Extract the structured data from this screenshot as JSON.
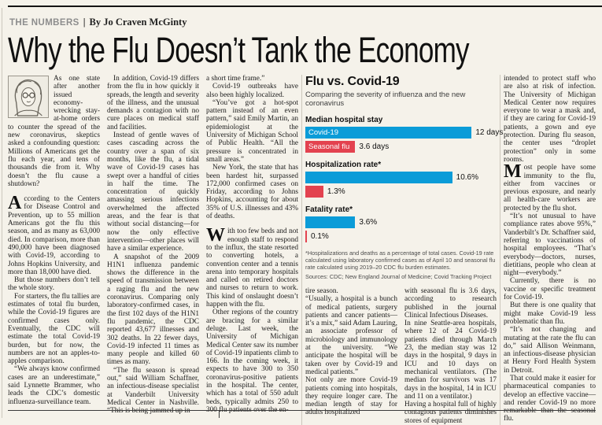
{
  "masthead": {
    "kicker": "THE NUMBERS",
    "separator": "|",
    "byline": "By Jo Craven McGinty"
  },
  "headline": "Why the Flu Doesn’t Tank the Economy",
  "article": {
    "col1": {
      "p1": "As one state after another issued economy-wrecking stay-at-home orders to counter the spread of the new coronavirus, skeptics asked a confounding question: Millions of Americans get the flu each year, and tens of thousands die from it. Why doesn’t the flu cause a shutdown?",
      "p2_dropcap": "A",
      "p2_rest": "ccording to the Centers for Disease Control and Prevention, up to 55 million Americans got the flu this season, and as many as 63,000 died. In comparison, more than 490,000 have been diagnosed with Covid-19, according to Johns Hopkins University, and more than 18,000 have died.",
      "p3": "But those numbers don’t tell the whole story.",
      "p4": "For starters, the flu tallies are estimates of total flu burden, while the Covid-19 figures are confirmed cases only. Eventually, the CDC will estimate the total Covid-19 burden, but for now, the numbers are not an apples-to-apples comparison.",
      "p5": "“We always know confirmed cases are an underestimate,” said Lynnette Brammer, who leads the CDC’s domestic influenza-surveillance team."
    },
    "col2": {
      "p1": "In addition, Covid-19 differs from the flu in how quickly it spreads, the length and severity of the illness, and the unusual demands a contagion with no cure places on medical staff and facilities.",
      "p2": "Instead of gentle waves of cases cascading across the country over a span of six months, like the flu, a tidal wave of Covid-19 cases has swept over a handful of cities in half the time. The concentration of quickly amassing serious infections overwhelmed the affected areas, and the fear is that without social distancing—for now the only effective intervention—other places will have a similar experience.",
      "p3": "A snapshot of the 2009 H1N1 influenza pandemic shows the difference in the speed of transmission between a raging flu and the new coronavirus. Comparing only laboratory-confirmed cases, in the first 102 days of the H1N1 flu pandemic, the CDC reported 43,677 illnesses and 302 deaths. In 22 fewer days, Covid-19 infected 11 times as many people and killed 60 times as many.",
      "p4": "“The flu season is spread out,” said William Schaffner, an infectious-disease specialist at Vanderbilt University Medical Center in Nashville. “This is being jammed up in"
    },
    "col3": {
      "p1": "a short time frame.”",
      "p2": "Covid-19 outbreaks have also been highly localized.",
      "p3": "“You’ve got a hot-spot pattern instead of an even pattern,” said Emily Martin, an epidemiologist at the University of Michigan School of Public Health. “All the pressure is concentrated in small areas.”",
      "p4": "New York, the state that has been hardest hit, surpassed 172,000 confirmed cases on Friday, according to Johns Hopkins, accounting for about 35% of U.S. illnesses and 43% of deaths.",
      "p5_dropcap": "W",
      "p5_rest": "ith too few beds and not enough staff to respond to the influx, the state resorted to converting hotels, a convention center and a tennis arena into temporary hospitals and called on retired doctors and nurses to return to work. This kind of onslaught doesn’t happen with the flu.",
      "p6": "Other regions of the country are bracing for a similar deluge. Last week, the University of Michigan Medical Center saw its number of Covid-19 inpatients climb to 166. In the coming week, it expects to have 300 to 350 coronavirus-positive patients in the hospital. The center, which has a total of 550 adult beds, typically admits 250 to 300 flu patients over the en-"
    },
    "col4": {
      "p1": "tire season.",
      "p2": "“Usually, a hospital is a bunch of medical patients, surgery patients and cancer patients—it’s a mix,” said Adam Lauring, an associate professor of microbiology and immunology at the university. “We anticipate the hospital will be taken over by Covid-19 and medical patients.”",
      "p3": "Not only are more Covid-19 patients coming into hospitals, they require longer care. The median length of stay for adults hospitalized"
    },
    "col5": {
      "p1": "with seasonal flu is 3.6 days, according to research published in the journal Clinical Infectious Diseases.",
      "p2": "In nine Seattle-area hospitals, where 12 of 24 Covid-19 patients died through March 23, the median stay was 12 days in the hospital, 9 days in ICU and 10 days on mechanical ventilators. (The median for survivors was 17 days in the hospital, 14 in ICU and 11 on a ventilator.)",
      "p3": "Having a hospital full of highly contagious patients diminishes stores of equipment"
    },
    "col6": {
      "p1": "intended to protect staff who are also at risk of infection. The University of Michigan Medical Center now requires everyone to wear a mask and, if they are caring for Covid-19 patients, a gown and eye protection. During flu season, the center uses “droplet protection” only in some rooms.",
      "p2_dropcap": "M",
      "p2_rest": "ost people have some immunity to the flu, either from vaccines or previous exposure, and nearly all health-care workers are protected by the flu shot.",
      "p3": "“It’s not unusual to have compliance rates above 95%,” Vanderbilt’s Dr. Schaffner said, referring to vaccinations of hospital employees. “That’s everybody—doctors, nurses, dietitians, people who clean at night—everybody.”",
      "p4": "Currently, there is no vaccine or specific treatment for Covid-19.",
      "p5": "But there is one quality that might make Covid-19 less problematic than flu.",
      "p6": "“It’s not changing and mutating at the rate the flu can do,” said Allison Weinmann, an infectious-disease physician at Henry Ford Health System in Detroit.",
      "p7": "That could make it easier for pharmaceutical companies to develop an effective vaccine—and render Covid-19 no more remarkable than the seasonal flu."
    }
  },
  "chart_data": {
    "type": "bar",
    "title": "Flu vs. Covid-19",
    "subtitle": "Comparing the severity of influenza and the new coronavirus",
    "series_names": {
      "covid": "Covid-19",
      "flu": "Seasonal flu"
    },
    "colors": {
      "covid": "#0b9cd8",
      "flu": "#e3424f"
    },
    "axis_max": 13.8,
    "grid": false,
    "legend_position": "inside-first-bars",
    "groups": [
      {
        "label": "Median hospital stay",
        "covid": 12,
        "flu": 3.6,
        "covid_label": "12 days",
        "flu_label": "3.6 days"
      },
      {
        "label": "Hospitalization rate*",
        "covid": 10.6,
        "flu": 1.3,
        "covid_label": "10.6%",
        "flu_label": "1.3%"
      },
      {
        "label": "Fatality rate*",
        "covid": 3.6,
        "flu": 0.1,
        "covid_label": "3.6%",
        "flu_label": "0.1%"
      }
    ],
    "footnote": "*Hospitalizations and deaths as a percentage of total cases. Covid-19 rate calculated using laboratory confirmed cases as of April 10 and seasonal flu rate calculated using 2019–20 CDC flu burden estimates.",
    "sources": "Sources: CDC; New England Journal of Medicine; Covid Tracking Project"
  }
}
